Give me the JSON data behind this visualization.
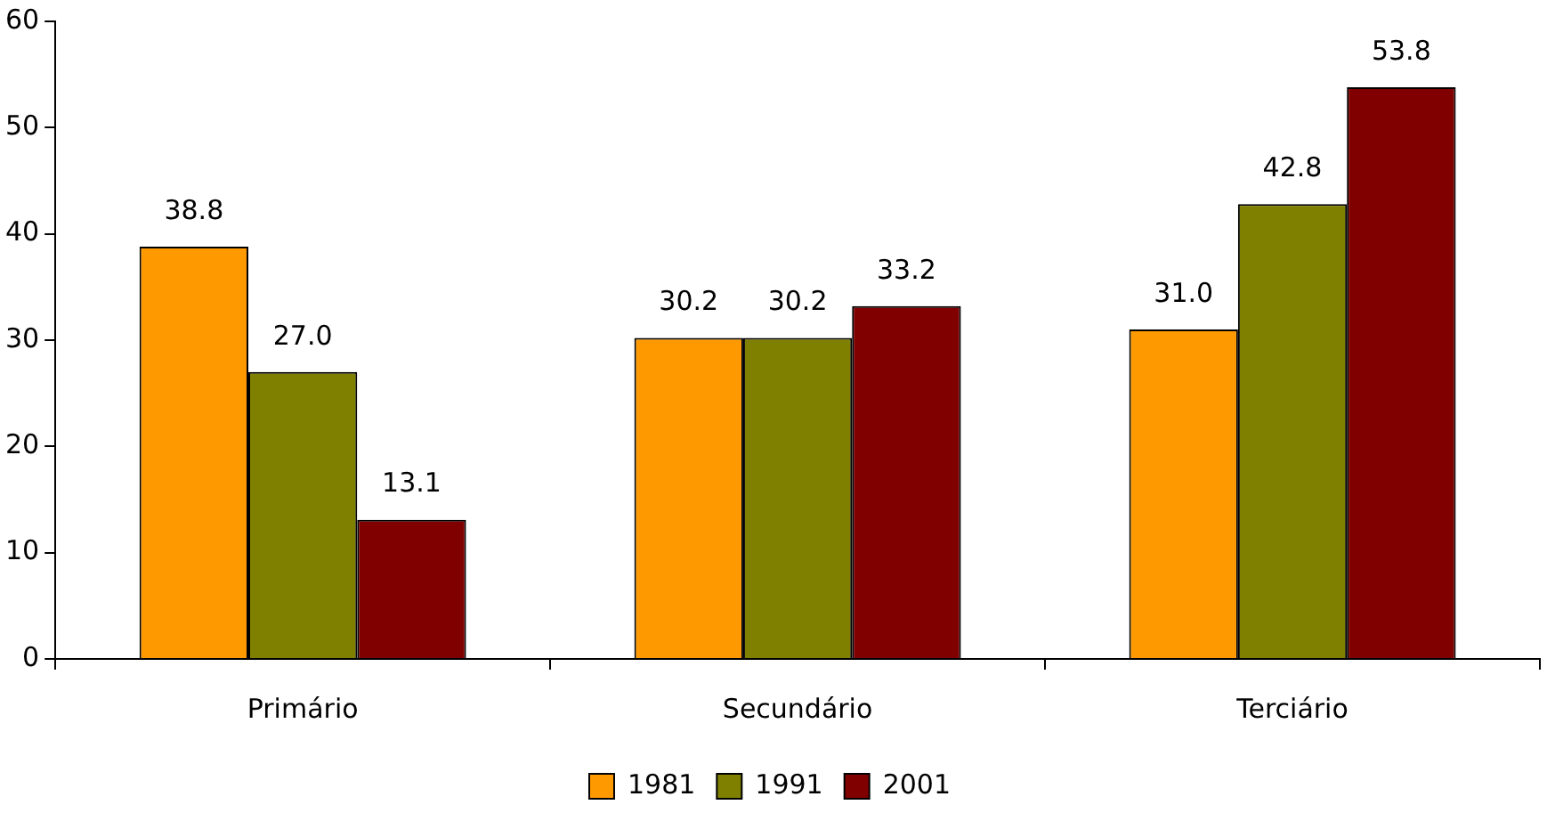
{
  "chart_data": {
    "type": "bar",
    "categories": [
      "Primário",
      "Secundário",
      "Terciário"
    ],
    "series": [
      {
        "name": "1981",
        "color": "#ff9900",
        "values": [
          38.8,
          30.2,
          31.0
        ],
        "value_labels": [
          "38.8",
          "30.2",
          "31.0"
        ]
      },
      {
        "name": "1991",
        "color": "#808000",
        "values": [
          27.0,
          30.2,
          42.8
        ],
        "value_labels": [
          "27.0",
          "30.2",
          "42.8"
        ]
      },
      {
        "name": "2001",
        "color": "#800000",
        "values": [
          13.1,
          33.2,
          53.8
        ],
        "value_labels": [
          "13.1",
          "33.2",
          "53.8"
        ]
      }
    ],
    "ylim": [
      0,
      60
    ],
    "yticks": [
      0,
      10,
      20,
      30,
      40,
      50,
      60
    ],
    "grid": false,
    "legend": "bottom"
  }
}
